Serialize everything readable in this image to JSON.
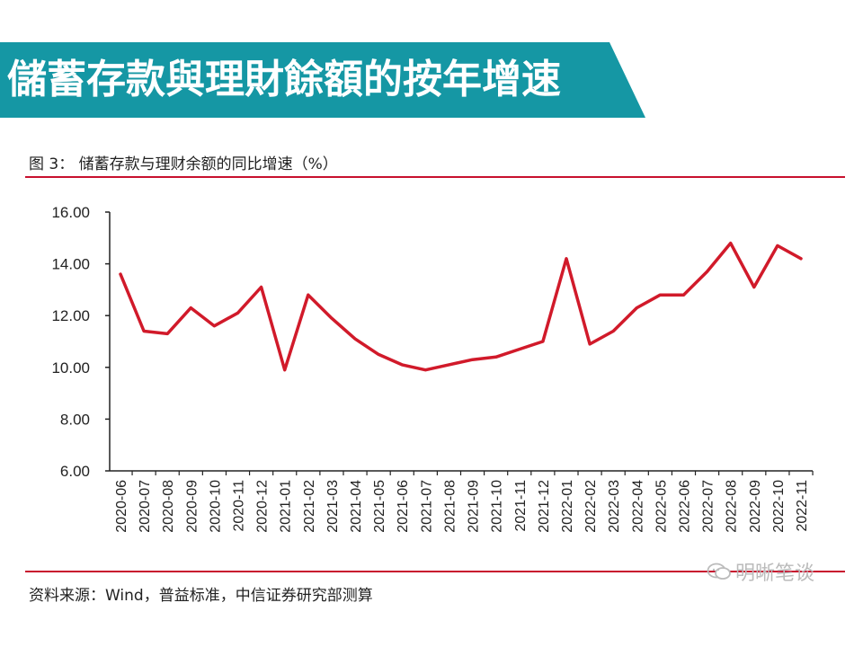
{
  "banner": {
    "title": "儲蓄存款與理財餘額的按年增速"
  },
  "figure": {
    "caption": "图 3：  储蓄存款与理财余额的同比增速（%）"
  },
  "source": "资料来源：Wind，普益标准，中信证券研究部测算",
  "watermark": "明晰笔谈",
  "colors": {
    "banner": "#1597a4",
    "line": "#d11a2a",
    "rule": "#c8102e"
  },
  "chart_data": {
    "type": "line",
    "title": "储蓄存款与理财余额的同比增速（%）",
    "xlabel": "",
    "ylabel": "",
    "ylim": [
      6,
      16
    ],
    "yticks": [
      "6.00",
      "8.00",
      "10.00",
      "12.00",
      "14.00",
      "16.00"
    ],
    "grid": false,
    "categories": [
      "2020-06",
      "2020-07",
      "2020-08",
      "2020-09",
      "2020-10",
      "2020-11",
      "2020-12",
      "2021-01",
      "2021-02",
      "2021-03",
      "2021-04",
      "2021-05",
      "2021-06",
      "2021-07",
      "2021-08",
      "2021-09",
      "2021-10",
      "2021-11",
      "2021-12",
      "2022-01",
      "2022-02",
      "2022-03",
      "2022-04",
      "2022-05",
      "2022-06",
      "2022-07",
      "2022-08",
      "2022-09",
      "2022-10",
      "2022-11"
    ],
    "series": [
      {
        "values": [
          13.6,
          11.4,
          11.3,
          12.3,
          11.6,
          12.1,
          13.1,
          9.9,
          12.8,
          11.9,
          11.1,
          10.5,
          10.1,
          9.9,
          10.1,
          10.3,
          10.4,
          10.7,
          11.0,
          14.2,
          10.9,
          11.4,
          12.3,
          12.8,
          12.8,
          13.7,
          14.8,
          13.1,
          14.7,
          14.2
        ]
      }
    ]
  }
}
